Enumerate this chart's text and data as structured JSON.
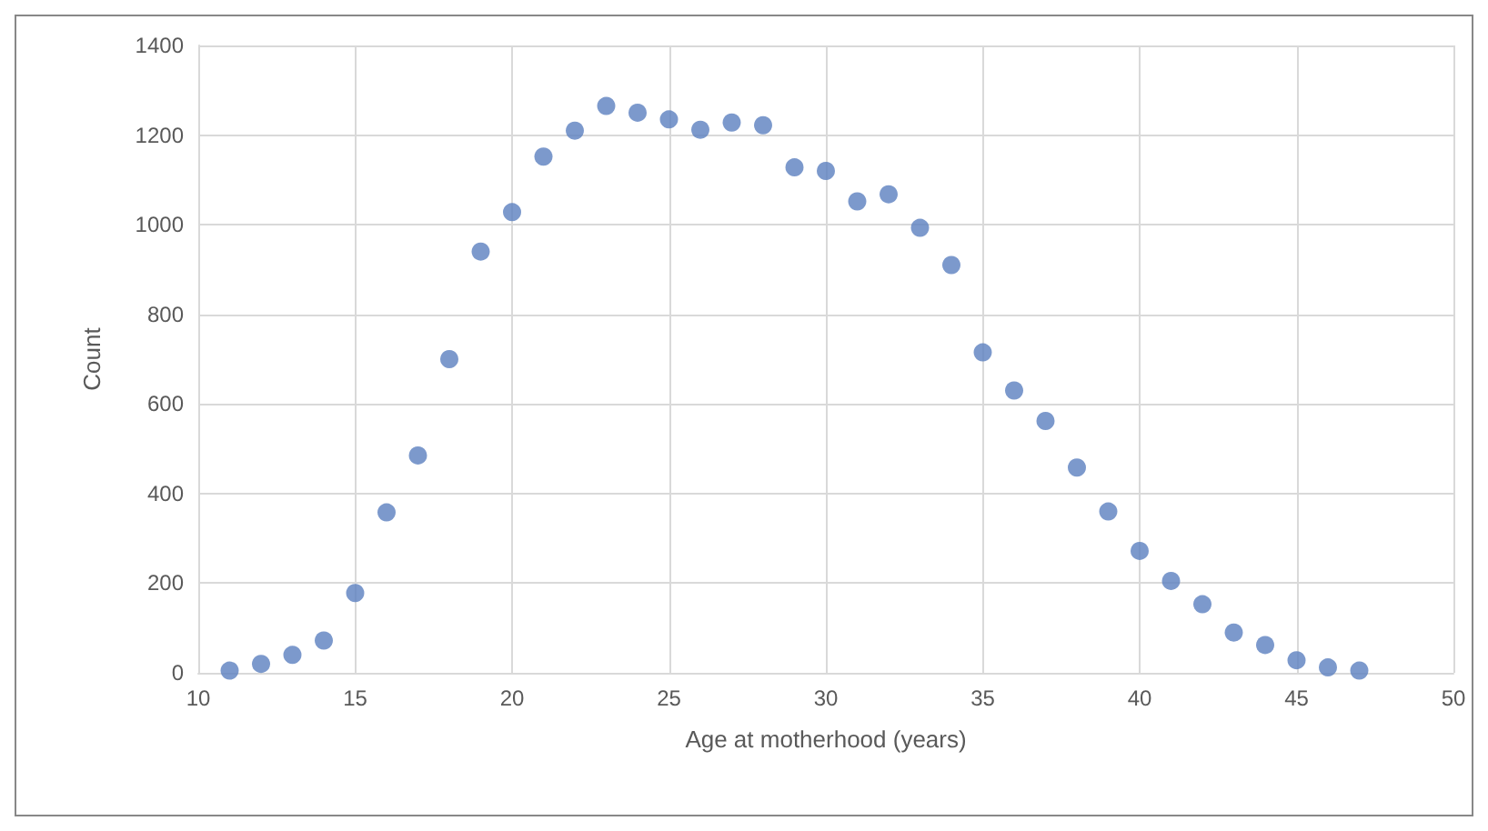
{
  "chart_data": {
    "type": "scatter",
    "xlabel": "Age at motherhood (years)",
    "ylabel": "Count",
    "x": [
      11,
      12,
      13,
      14,
      15,
      16,
      17,
      18,
      19,
      20,
      21,
      22,
      23,
      24,
      25,
      26,
      27,
      28,
      29,
      30,
      31,
      32,
      33,
      34,
      35,
      36,
      37,
      38,
      39,
      40,
      41,
      42,
      43,
      44,
      45,
      46,
      47
    ],
    "values": [
      5,
      20,
      40,
      72,
      178,
      358,
      485,
      700,
      940,
      1028,
      1152,
      1210,
      1265,
      1250,
      1235,
      1212,
      1228,
      1222,
      1128,
      1120,
      1052,
      1068,
      993,
      910,
      715,
      630,
      562,
      458,
      360,
      272,
      205,
      153,
      90,
      62,
      28,
      12,
      5
    ],
    "color": "#5b7fbf",
    "marker": "circle",
    "xlim": [
      10,
      50
    ],
    "xticks": [
      10,
      15,
      20,
      25,
      30,
      35,
      40,
      45,
      50
    ],
    "ylim": [
      0,
      1400
    ],
    "yticks": [
      0,
      200,
      400,
      600,
      800,
      1000,
      1200,
      1400
    ],
    "grid": true
  }
}
